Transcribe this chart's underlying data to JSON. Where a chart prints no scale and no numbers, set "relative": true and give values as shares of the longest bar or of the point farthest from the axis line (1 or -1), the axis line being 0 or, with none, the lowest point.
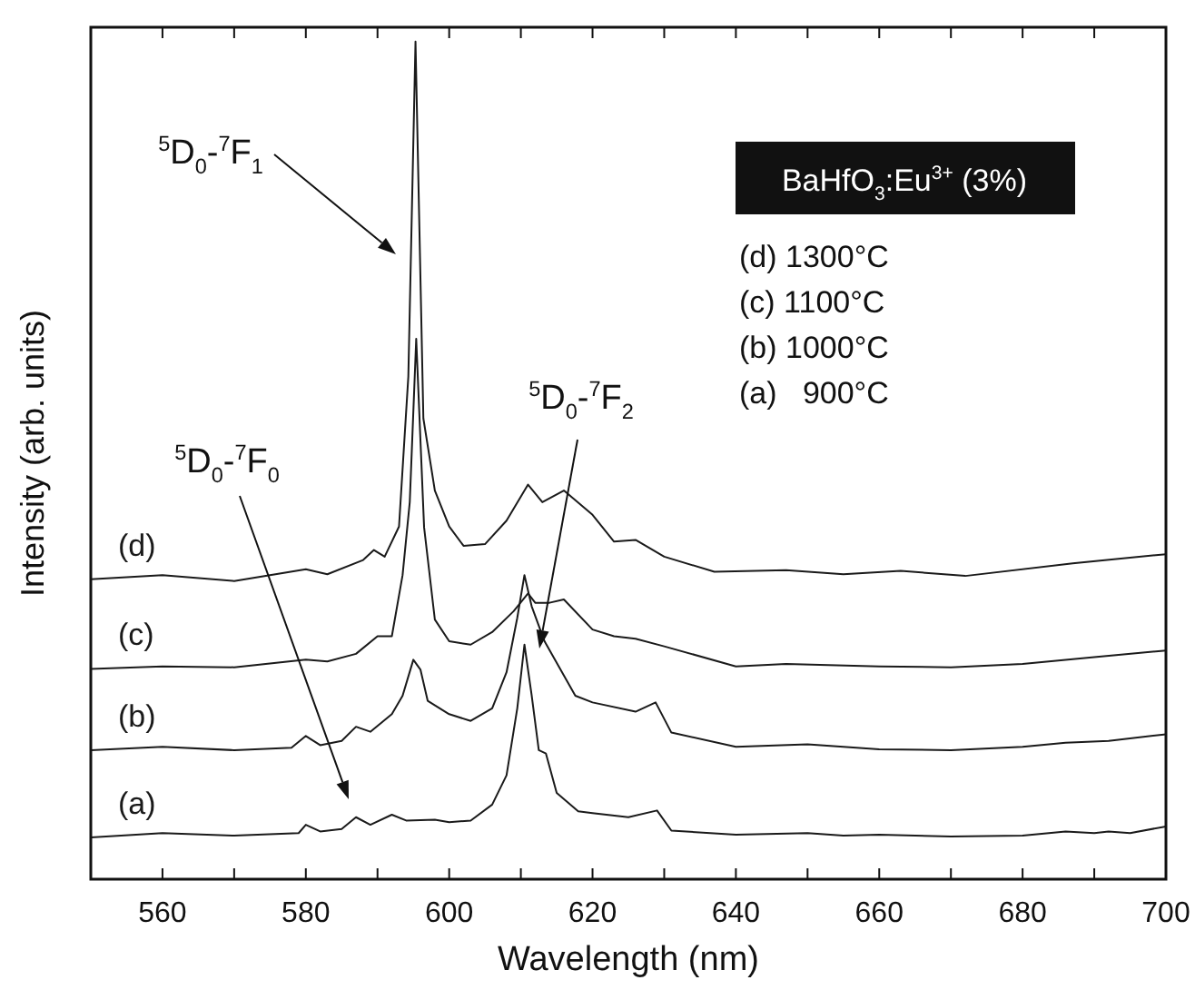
{
  "chart_data": {
    "type": "line",
    "xlabel": "Wavelength (nm)",
    "ylabel": "Intensity (arb. units)",
    "relative": true,
    "marker": "none",
    "line_style": "solid",
    "xlim": [
      550,
      700
    ],
    "xticks": [
      {
        "value": 550,
        "label": null
      },
      560,
      {
        "value": 570,
        "label": null
      },
      580,
      {
        "value": 590,
        "label": null
      },
      600,
      {
        "value": 610,
        "label": null
      },
      620,
      {
        "value": 630,
        "label": null
      },
      640,
      {
        "value": 650,
        "label": null
      },
      660,
      {
        "value": 670,
        "label": null
      },
      680,
      {
        "value": 690,
        "label": null
      },
      700
    ],
    "series": [
      {
        "name": "(a)",
        "color": "#1a1a1a",
        "x": [
          550,
          560,
          570,
          579,
          580,
          582,
          585,
          587,
          589,
          592,
          594,
          598,
          600,
          603,
          606,
          608,
          609.5,
          610.5,
          611.5,
          612.5,
          613.5,
          615,
          618,
          620,
          625,
          629,
          631,
          640,
          650,
          655,
          660,
          670,
          680,
          686,
          690,
          692,
          695,
          700
        ],
        "values": [
          0.05,
          0.055,
          0.052,
          0.055,
          0.065,
          0.057,
          0.06,
          0.074,
          0.065,
          0.077,
          0.07,
          0.071,
          0.068,
          0.07,
          0.089,
          0.124,
          0.204,
          0.28,
          0.22,
          0.154,
          0.15,
          0.103,
          0.081,
          0.079,
          0.074,
          0.082,
          0.058,
          0.053,
          0.055,
          0.052,
          0.053,
          0.051,
          0.052,
          0.057,
          0.055,
          0.057,
          0.055,
          0.063
        ]
      },
      {
        "name": "(b)",
        "color": "#1a1a1a",
        "x": [
          550,
          560,
          570,
          578,
          580,
          582,
          585,
          587,
          589,
          592,
          593.5,
          595,
          596,
          597,
          600,
          603,
          606,
          608,
          609.5,
          610.5,
          611.5,
          613.3,
          617.6,
          620,
          626,
          628.8,
          631,
          640,
          650,
          660,
          670,
          680,
          686,
          692,
          700
        ],
        "values": [
          0.154,
          0.158,
          0.154,
          0.157,
          0.171,
          0.16,
          0.165,
          0.182,
          0.176,
          0.197,
          0.219,
          0.262,
          0.25,
          0.213,
          0.197,
          0.189,
          0.204,
          0.247,
          0.312,
          0.363,
          0.326,
          0.284,
          0.219,
          0.211,
          0.2,
          0.211,
          0.175,
          0.158,
          0.161,
          0.155,
          0.154,
          0.158,
          0.163,
          0.165,
          0.173
        ]
      },
      {
        "name": "(c)",
        "color": "#1a1a1a",
        "x": [
          550,
          560,
          570,
          580,
          583,
          587,
          590,
          592,
          593.5,
          594.5,
          595.4,
          596.5,
          598,
          600,
          603,
          606,
          609,
          611,
          612,
          614,
          616,
          620,
          623,
          626,
          630,
          640,
          647,
          660,
          670,
          680,
          690,
          700
        ],
        "values": [
          0.251,
          0.254,
          0.253,
          0.262,
          0.26,
          0.269,
          0.29,
          0.29,
          0.363,
          0.45,
          0.645,
          0.42,
          0.31,
          0.284,
          0.28,
          0.295,
          0.32,
          0.341,
          0.33,
          0.33,
          0.334,
          0.298,
          0.29,
          0.287,
          0.278,
          0.254,
          0.257,
          0.254,
          0.253,
          0.257,
          0.265,
          0.273
        ]
      },
      {
        "name": "(d)",
        "color": "#1a1a1a",
        "x": [
          550,
          560,
          570,
          580,
          583,
          588,
          589.5,
          591,
          593,
          594.3,
          595.3,
          596.4,
          598,
          600,
          602,
          605,
          608,
          611,
          613,
          616,
          620,
          623,
          626,
          630,
          637,
          647,
          655,
          663,
          672,
          687,
          700
        ],
        "values": [
          0.358,
          0.363,
          0.356,
          0.37,
          0.364,
          0.381,
          0.393,
          0.385,
          0.421,
          0.6,
          1,
          0.55,
          0.464,
          0.421,
          0.398,
          0.4,
          0.428,
          0.471,
          0.45,
          0.464,
          0.435,
          0.403,
          0.405,
          0.385,
          0.367,
          0.369,
          0.364,
          0.368,
          0.362,
          0.377,
          0.388
        ]
      }
    ],
    "annotations": [
      "$^{5}$D$_{0}$-$^{7}$F$_{1}$",
      "$^{5}$D$_{0}$-$^{7}$F$_{0}$",
      "$^{5}$D$_{0}$-$^{7}$F$_{2}$",
      "BaHfO$_{3}$:Eu$^{3+}$ (3%)",
      "(d) 1300°C",
      "(c) 1100°C",
      "(b) 1000°C",
      "(a)   900°C"
    ]
  }
}
